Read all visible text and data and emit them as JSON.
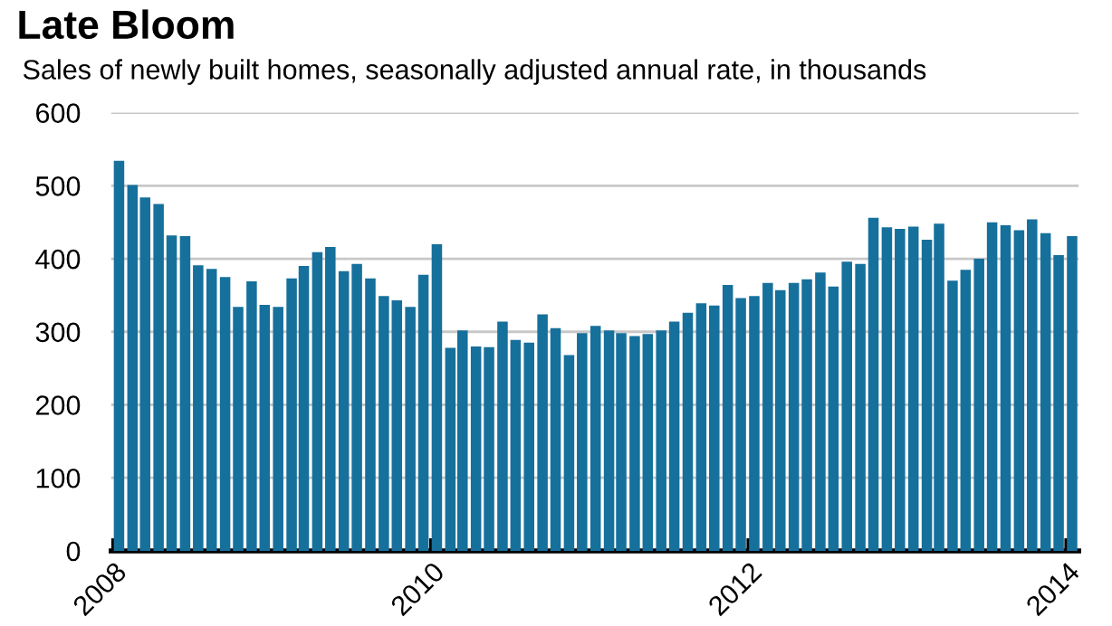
{
  "chart_data": {
    "type": "bar",
    "title": "Late Bloom",
    "subtitle": "Sales of newly built homes, seasonally adjusted annual rate, in thousands",
    "x": [
      "2008-01",
      "2008-02",
      "2008-03",
      "2008-04",
      "2008-05",
      "2008-06",
      "2008-07",
      "2008-08",
      "2008-09",
      "2008-10",
      "2008-11",
      "2008-12",
      "2009-01",
      "2009-02",
      "2009-03",
      "2009-04",
      "2009-05",
      "2009-06",
      "2009-07",
      "2009-08",
      "2009-09",
      "2009-10",
      "2009-11",
      "2009-12",
      "2010-01",
      "2010-02",
      "2010-03",
      "2010-04",
      "2010-05",
      "2010-06",
      "2010-07",
      "2010-08",
      "2010-09",
      "2010-10",
      "2010-11",
      "2010-12",
      "2011-01",
      "2011-02",
      "2011-03",
      "2011-04",
      "2011-05",
      "2011-06",
      "2011-07",
      "2011-08",
      "2011-09",
      "2011-10",
      "2011-11",
      "2011-12",
      "2012-01",
      "2012-02",
      "2012-03",
      "2012-04",
      "2012-05",
      "2012-06",
      "2012-07",
      "2012-08",
      "2012-09",
      "2012-10",
      "2012-11",
      "2012-12",
      "2013-01",
      "2013-02",
      "2013-03",
      "2013-04",
      "2013-05",
      "2013-06",
      "2013-07",
      "2013-08",
      "2013-09",
      "2013-10",
      "2013-11",
      "2013-12",
      "2014-01"
    ],
    "values": [
      534,
      501,
      484,
      475,
      432,
      431,
      391,
      386,
      375,
      334,
      369,
      337,
      334,
      373,
      390,
      409,
      416,
      383,
      393,
      373,
      349,
      343,
      334,
      378,
      420,
      278,
      302,
      280,
      279,
      314,
      289,
      285,
      324,
      305,
      268,
      298,
      308,
      302,
      298,
      294,
      297,
      302,
      314,
      326,
      339,
      336,
      364,
      346,
      349,
      367,
      357,
      367,
      372,
      381,
      362,
      396,
      393,
      456,
      443,
      441,
      444,
      426,
      448,
      370,
      385,
      400,
      450,
      446,
      439,
      454,
      435,
      405,
      431
    ],
    "color": "#16709c",
    "xlim": [
      "2007-12-26",
      "2014-01-28"
    ],
    "xticks": [
      "2008",
      "2010",
      "2012",
      "2014"
    ],
    "ylim": [
      0,
      600
    ],
    "yticks": [
      0,
      100,
      200,
      300,
      400,
      500,
      600
    ],
    "grid": "y"
  }
}
